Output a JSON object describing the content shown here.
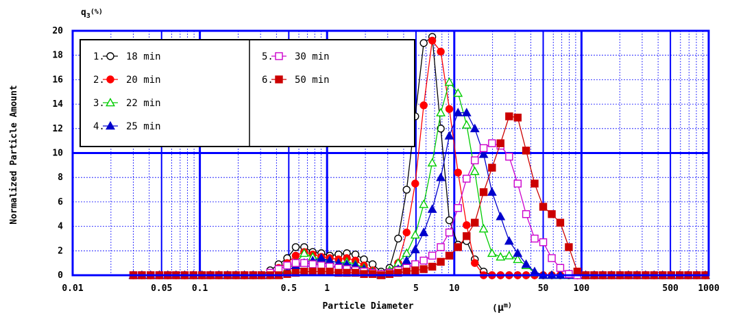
{
  "chart_data": {
    "type": "line",
    "y_unit_label": "q",
    "y_unit_sub": "3",
    "y_unit_pct": "(%)",
    "ylabel": "Normalized Particle Amount",
    "xlabel": "Particle Diameter",
    "xunit_open": "(",
    "xunit_mu": "μ",
    "xunit_rest": "m)",
    "xscale": "log",
    "xlim": [
      0.01,
      1000
    ],
    "ylim": [
      0,
      20
    ],
    "grid": true,
    "legend_position": "top-left",
    "x_ticks": [
      {
        "v": 0.01,
        "label": "0.01"
      },
      {
        "v": 0.05,
        "label": "0.05"
      },
      {
        "v": 0.1,
        "label": "0.1"
      },
      {
        "v": 0.5,
        "label": "0.5"
      },
      {
        "v": 1,
        "label": "1"
      },
      {
        "v": 5,
        "label": "5"
      },
      {
        "v": 10,
        "label": "10"
      },
      {
        "v": 50,
        "label": "50"
      },
      {
        "v": 100,
        "label": "100"
      },
      {
        "v": 500,
        "label": "500"
      },
      {
        "v": 1000,
        "label": "1000"
      }
    ],
    "y_ticks": [
      0,
      2,
      4,
      6,
      8,
      10,
      12,
      14,
      16,
      18,
      20
    ],
    "x_major_grid": [
      0.01,
      0.1,
      1,
      10,
      100,
      1000
    ],
    "x_mid_grid": [
      0.05,
      0.5,
      5,
      50,
      500
    ],
    "y_major_grid": [
      10
    ],
    "x": [
      0.03,
      0.035,
      0.041,
      0.048,
      0.056,
      0.065,
      0.076,
      0.089,
      0.104,
      0.121,
      0.141,
      0.165,
      0.192,
      0.224,
      0.262,
      0.305,
      0.357,
      0.416,
      0.486,
      0.567,
      0.661,
      0.771,
      0.901,
      1.05,
      1.23,
      1.43,
      1.67,
      1.95,
      2.28,
      2.66,
      3.1,
      3.62,
      4.22,
      4.93,
      5.75,
      6.71,
      7.83,
      9.14,
      10.7,
      12.5,
      14.5,
      17.0,
      19.8,
      23.1,
      27.0,
      31.5,
      36.7,
      42.8,
      50.0,
      58.4,
      68.1,
      79.5,
      92.8,
      108,
      126,
      147,
      172,
      201,
      234,
      273,
      319,
      372,
      434,
      507,
      592,
      690,
      806,
      941
    ],
    "series": [
      {
        "name": "18 min",
        "index_label": "1.",
        "marker": "circle",
        "filled": false,
        "color": "#000000",
        "values": [
          0,
          0,
          0,
          0,
          0,
          0,
          0,
          0,
          0,
          0,
          0,
          0,
          0,
          0,
          0,
          0,
          0.4,
          0.9,
          1.4,
          2.3,
          2.3,
          1.9,
          1.8,
          1.6,
          1.7,
          1.8,
          1.7,
          1.3,
          0.9,
          0.3,
          0.6,
          3.0,
          7.0,
          13.0,
          19.0,
          19.5,
          12.0,
          4.5,
          2.5,
          2.8,
          1.3,
          0.3,
          0,
          0,
          0,
          0,
          0,
          0,
          0,
          0,
          0,
          0,
          0,
          0,
          0,
          0,
          0,
          0,
          0,
          0,
          0,
          0,
          0,
          0,
          0,
          0,
          0,
          0
        ]
      },
      {
        "name": "20 min",
        "index_label": "2.",
        "marker": "circle",
        "filled": true,
        "color": "#ff0000",
        "values": [
          0,
          0,
          0,
          0,
          0,
          0,
          0,
          0,
          0,
          0,
          0,
          0,
          0,
          0,
          0,
          0,
          0,
          0.6,
          1.0,
          1.6,
          1.9,
          1.7,
          1.5,
          1.4,
          1.3,
          1.4,
          1.2,
          0.8,
          0.4,
          0.1,
          0.3,
          1.0,
          3.5,
          7.5,
          13.9,
          19.2,
          18.3,
          13.6,
          8.4,
          4.1,
          1.0,
          0,
          0,
          0,
          0,
          0,
          0,
          0,
          0,
          0,
          0,
          0,
          0,
          0,
          0,
          0,
          0,
          0,
          0,
          0,
          0,
          0,
          0,
          0,
          0,
          0,
          0,
          0
        ]
      },
      {
        "name": "22 min",
        "index_label": "3.",
        "marker": "triangle",
        "filled": false,
        "color": "#00cc00",
        "values": [
          0,
          0,
          0,
          0,
          0,
          0,
          0,
          0,
          0,
          0,
          0,
          0,
          0,
          0,
          0,
          0,
          0,
          0,
          0.5,
          1.0,
          1.8,
          1.5,
          1.3,
          1.2,
          1.0,
          1.1,
          0.9,
          0.6,
          0.3,
          0.1,
          0.4,
          1.0,
          1.8,
          3.3,
          5.8,
          9.2,
          13.3,
          15.8,
          14.9,
          12.3,
          8.5,
          3.8,
          1.8,
          1.5,
          1.6,
          1.3,
          0.8,
          0.2,
          0,
          0,
          0,
          0,
          0,
          0,
          0,
          0,
          0,
          0,
          0,
          0,
          0,
          0,
          0,
          0,
          0,
          0,
          0,
          0
        ]
      },
      {
        "name": "25 min",
        "index_label": "4.",
        "marker": "triangle",
        "filled": true,
        "color": "#0000cc",
        "values": [
          0,
          0,
          0,
          0,
          0,
          0,
          0,
          0,
          0,
          0,
          0,
          0,
          0,
          0,
          0,
          0,
          0,
          0,
          0.3,
          0.8,
          1.0,
          1.2,
          1.4,
          1.2,
          1.0,
          0.9,
          0.8,
          0.5,
          0.2,
          0,
          0.2,
          0.5,
          1.2,
          2.1,
          3.5,
          5.4,
          8.0,
          11.4,
          13.3,
          13.3,
          12.0,
          9.9,
          6.8,
          4.8,
          2.8,
          1.8,
          0.9,
          0.3,
          0,
          0,
          0,
          0,
          0,
          0,
          0,
          0,
          0,
          0,
          0,
          0,
          0,
          0,
          0,
          0,
          0,
          0,
          0,
          0
        ]
      },
      {
        "name": "30 min",
        "index_label": "5.",
        "marker": "square",
        "filled": false,
        "color": "#cc00cc",
        "values": [
          0,
          0,
          0,
          0,
          0,
          0,
          0,
          0,
          0,
          0,
          0,
          0,
          0,
          0,
          0,
          0,
          0.2,
          0.5,
          0.8,
          1.0,
          1.0,
          0.9,
          0.8,
          0.7,
          0.6,
          0.5,
          0.4,
          0.3,
          0.2,
          0.1,
          0.2,
          0.4,
          0.6,
          0.9,
          1.2,
          1.6,
          2.3,
          3.5,
          5.5,
          7.9,
          9.4,
          10.4,
          10.8,
          10.6,
          9.7,
          7.5,
          5.0,
          3.0,
          2.7,
          1.4,
          0.6,
          0.1,
          0,
          0,
          0,
          0,
          0,
          0,
          0,
          0,
          0,
          0,
          0,
          0,
          0,
          0,
          0,
          0
        ]
      },
      {
        "name": "50 min",
        "index_label": "6.",
        "marker": "square",
        "filled": true,
        "color": "#cc0000",
        "values": [
          0,
          0,
          0,
          0,
          0,
          0,
          0,
          0,
          0,
          0,
          0,
          0,
          0,
          0,
          0,
          0,
          0,
          0,
          0.1,
          0.2,
          0.3,
          0.3,
          0.3,
          0.3,
          0.2,
          0.2,
          0.2,
          0.1,
          0.1,
          0,
          0.1,
          0.2,
          0.3,
          0.4,
          0.5,
          0.7,
          1.1,
          1.6,
          2.3,
          3.2,
          4.3,
          6.8,
          8.8,
          10.8,
          13.0,
          12.9,
          10.2,
          7.5,
          5.6,
          5.0,
          4.3,
          2.3,
          0.3,
          0,
          0,
          0,
          0,
          0,
          0,
          0,
          0,
          0,
          0,
          0,
          0,
          0,
          0,
          0
        ]
      }
    ]
  }
}
